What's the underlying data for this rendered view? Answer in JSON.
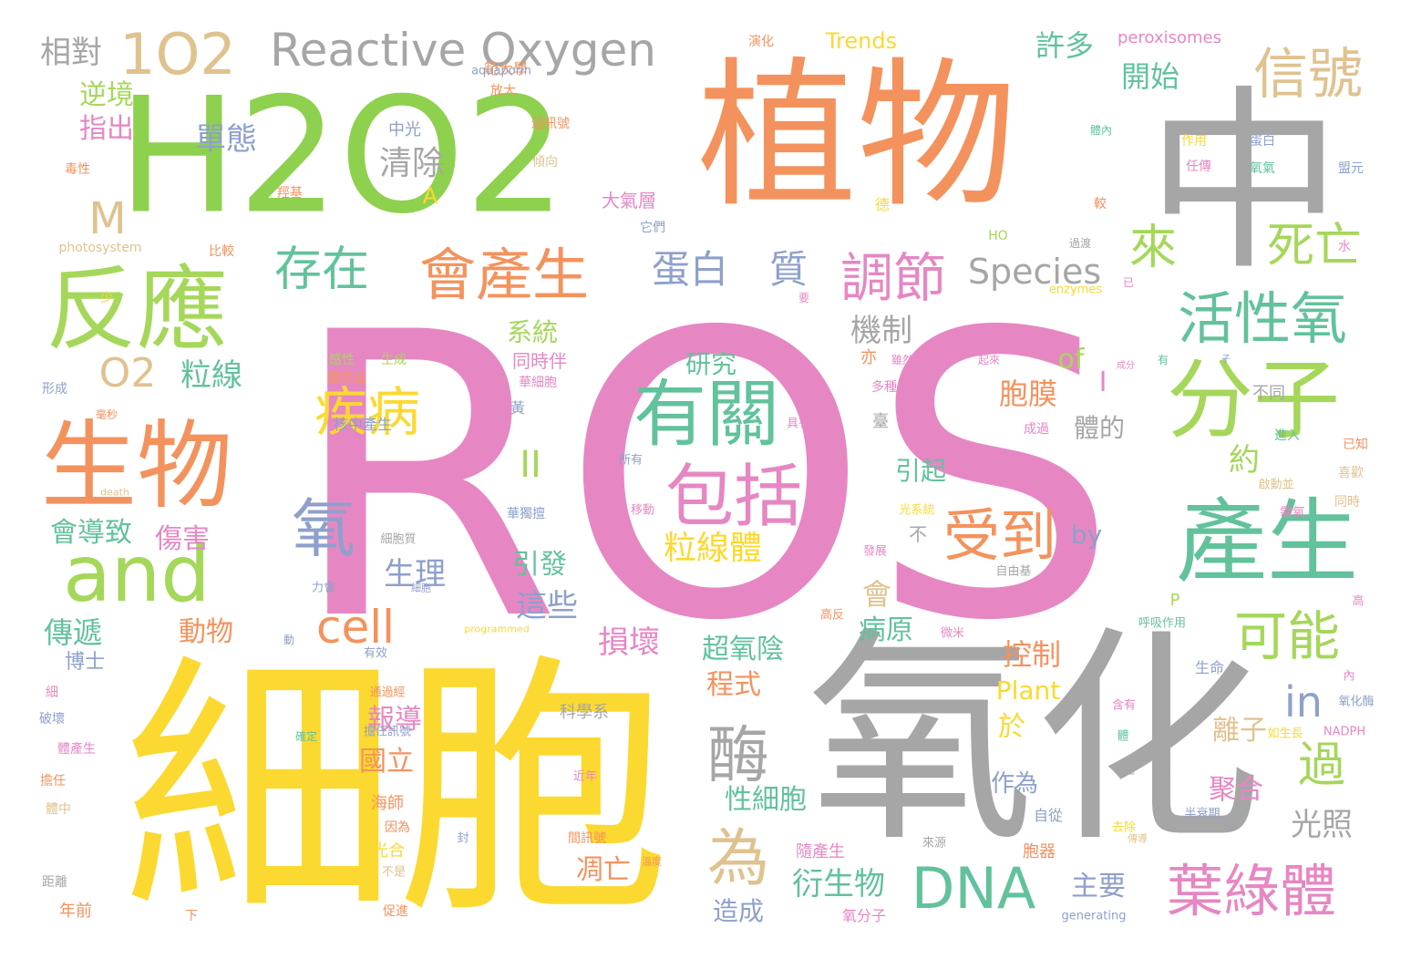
{
  "words": [
    {
      "text": "ROS",
      "color": "#e687c3"
    },
    {
      "text": "細胞",
      "color": "#fbd930"
    },
    {
      "text": "氧化",
      "color": "#a6a6a6"
    },
    {
      "text": "中",
      "color": "#a6a6a6"
    },
    {
      "text": "植物",
      "color": "#f4925d"
    },
    {
      "text": "H2O2",
      "color": "#8ed14e"
    },
    {
      "text": "生物",
      "color": "#f4925d"
    },
    {
      "text": "反應",
      "color": "#a5d75a"
    },
    {
      "text": "產生",
      "color": "#62c29b"
    },
    {
      "text": "分子",
      "color": "#a5d75a"
    },
    {
      "text": "有關",
      "color": "#62c29b"
    },
    {
      "text": "包括",
      "color": "#e687c3"
    },
    {
      "text": "and",
      "color": "#a5d75a"
    },
    {
      "text": "1O2",
      "color": "#e0c28f"
    },
    {
      "text": "Reactive Oxygen",
      "color": "#a6a6a6"
    },
    {
      "text": "信號",
      "color": "#e0c28f"
    },
    {
      "text": "活性氧",
      "color": "#62c29b"
    },
    {
      "text": "會產生",
      "color": "#f4925d"
    },
    {
      "text": "存在",
      "color": "#62c29b"
    },
    {
      "text": "調節",
      "color": "#e687c3"
    },
    {
      "text": "疾病",
      "color": "#fbd930"
    },
    {
      "text": "氧",
      "color": "#8ea0cb"
    },
    {
      "text": "受到",
      "color": "#f4925d"
    },
    {
      "text": "葉綠體",
      "color": "#e687c3"
    },
    {
      "text": "DNA",
      "color": "#62c29b"
    },
    {
      "text": "酶",
      "color": "#a6a6a6"
    },
    {
      "text": "為",
      "color": "#e0c28f"
    },
    {
      "text": "可能",
      "color": "#a5d75a"
    },
    {
      "text": "死亡",
      "color": "#a5d75a"
    },
    {
      "text": "來",
      "color": "#a5d75a"
    },
    {
      "text": "cell",
      "color": "#f4925d"
    },
    {
      "text": "蛋白",
      "color": "#8ea0cb"
    },
    {
      "text": "質",
      "color": "#8ea0cb"
    },
    {
      "text": "Species",
      "color": "#a6a6a6"
    },
    {
      "text": "過",
      "color": "#a5d75a"
    },
    {
      "text": "in",
      "color": "#8ea0cb"
    },
    {
      "text": "M",
      "color": "#e0c28f"
    },
    {
      "text": "O2",
      "color": "#e0c28f"
    },
    {
      "text": "相對",
      "color": "#a6a6a6"
    },
    {
      "text": "逆境",
      "color": "#a5d75a"
    },
    {
      "text": "指出",
      "color": "#e687c3"
    },
    {
      "text": "粒線",
      "color": "#62c29b"
    },
    {
      "text": "粒線體",
      "color": "#fbd930"
    },
    {
      "text": "單態",
      "color": "#8ea0cb"
    },
    {
      "text": "清除",
      "color": "#a6a6a6"
    },
    {
      "text": "許多",
      "color": "#62c29b"
    },
    {
      "text": "開始",
      "color": "#62c29b"
    },
    {
      "text": "機制",
      "color": "#a6a6a6"
    },
    {
      "text": "系統",
      "color": "#a5d75a"
    },
    {
      "text": "研究",
      "color": "#62c29b"
    },
    {
      "text": "胞膜",
      "color": "#f4925d"
    },
    {
      "text": "體的",
      "color": "#a6a6a6"
    },
    {
      "text": "約",
      "color": "#a5d75a"
    },
    {
      "text": "of",
      "color": "#a5d75a"
    },
    {
      "text": "I",
      "color": "#e687c3"
    },
    {
      "text": "II",
      "color": "#a5d75a"
    },
    {
      "text": "引起",
      "color": "#62c29b"
    },
    {
      "text": "by",
      "color": "#8ea0cb"
    },
    {
      "text": "會導致",
      "color": "#62c29b"
    },
    {
      "text": "傷害",
      "color": "#e687c3"
    },
    {
      "text": "生理",
      "color": "#8ea0cb"
    },
    {
      "text": "引發",
      "color": "#62c29b"
    },
    {
      "text": "這些",
      "color": "#8ea0cb"
    },
    {
      "text": "會",
      "color": "#e0c28f"
    },
    {
      "text": "傳遞",
      "color": "#62c29b"
    },
    {
      "text": "動物",
      "color": "#f4925d"
    },
    {
      "text": "損壞",
      "color": "#e687c3"
    },
    {
      "text": "超氧陰",
      "color": "#62c29b"
    },
    {
      "text": "控制",
      "color": "#f4925d"
    },
    {
      "text": "博士",
      "color": "#8ea0cb"
    },
    {
      "text": "程式",
      "color": "#f4925d"
    },
    {
      "text": "病原",
      "color": "#62c29b"
    },
    {
      "text": "Plant",
      "color": "#fbd930"
    },
    {
      "text": "報導",
      "color": "#e687c3"
    },
    {
      "text": "於",
      "color": "#fbd930"
    },
    {
      "text": "離子",
      "color": "#e0c28f"
    },
    {
      "text": "作為",
      "color": "#8ea0cb"
    },
    {
      "text": "聚合",
      "color": "#e687c3"
    },
    {
      "text": "性細胞",
      "color": "#62c29b"
    },
    {
      "text": "光照",
      "color": "#a6a6a6"
    },
    {
      "text": "國立",
      "color": "#f4925d"
    },
    {
      "text": "凋亡",
      "color": "#f4925d"
    },
    {
      "text": "衍生物",
      "color": "#62c29b"
    },
    {
      "text": "主要",
      "color": "#8ea0cb"
    },
    {
      "text": "造成",
      "color": "#8ea0cb"
    },
    {
      "text": "Trends",
      "color": "#fbd930"
    },
    {
      "text": "peroxisomes",
      "color": "#e687c3"
    },
    {
      "text": "範大學",
      "color": "#f4925d"
    },
    {
      "text": "演化",
      "color": "#f4925d"
    },
    {
      "text": "aquaporin",
      "color": "#8ea0cb"
    },
    {
      "text": "放大",
      "color": "#f4925d"
    },
    {
      "text": "中光",
      "color": "#8ea0cb"
    },
    {
      "text": "遞訊號",
      "color": "#f4925d"
    },
    {
      "text": "傾向",
      "color": "#e0c28f"
    },
    {
      "text": "毒性",
      "color": "#f4925d"
    },
    {
      "text": "羥基",
      "color": "#f4925d"
    },
    {
      "text": "A",
      "color": "#fbd930"
    },
    {
      "text": "大氣層",
      "color": "#e687c3"
    },
    {
      "text": "它們",
      "color": "#8ea0cb"
    },
    {
      "text": "photosystem",
      "color": "#e0c28f"
    },
    {
      "text": "比較",
      "color": "#f4925d"
    },
    {
      "text": "體內",
      "color": "#62c29b"
    },
    {
      "text": "作用",
      "color": "#fbd930"
    },
    {
      "text": "蛋白",
      "color": "#8ea0cb"
    },
    {
      "text": "任傳",
      "color": "#e687c3"
    },
    {
      "text": "氧氣",
      "color": "#62c29b"
    },
    {
      "text": "盟元",
      "color": "#8ea0cb"
    },
    {
      "text": "德",
      "color": "#fbd930"
    },
    {
      "text": "較",
      "color": "#f4925d"
    },
    {
      "text": "HO",
      "color": "#a5d75a"
    },
    {
      "text": "過渡",
      "color": "#a6a6a6"
    },
    {
      "text": "enzymes",
      "color": "#fbd930"
    },
    {
      "text": "水",
      "color": "#e687c3"
    },
    {
      "text": "已",
      "color": "#e687c3"
    },
    {
      "text": "少",
      "color": "#fbd930"
    },
    {
      "text": "要",
      "color": "#e687c3"
    },
    {
      "text": "同時伴",
      "color": "#e687c3"
    },
    {
      "text": "華細胞",
      "color": "#e687c3"
    },
    {
      "text": "黃",
      "color": "#8ea0cb"
    },
    {
      "text": "感性",
      "color": "#a5d75a"
    },
    {
      "text": "生成",
      "color": "#a5d75a"
    },
    {
      "text": "亦",
      "color": "#f4925d"
    },
    {
      "text": "雖然",
      "color": "#e687c3"
    },
    {
      "text": "起來",
      "color": "#e687c3"
    },
    {
      "text": "有",
      "color": "#62c29b"
    },
    {
      "text": "成分",
      "color": "#e687c3"
    },
    {
      "text": "子",
      "color": "#8ea0cb"
    },
    {
      "text": "形成",
      "color": "#8ea0cb"
    },
    {
      "text": "體和過",
      "color": "#f4925d"
    },
    {
      "text": "多種",
      "color": "#e687c3"
    },
    {
      "text": "不同",
      "color": "#a6a6a6"
    },
    {
      "text": "臺",
      "color": "#a6a6a6"
    },
    {
      "text": "成過",
      "color": "#e687c3"
    },
    {
      "text": "進入",
      "color": "#62c29b"
    },
    {
      "text": "核中產生",
      "color": "#8ea0cb"
    },
    {
      "text": "毫秒",
      "color": "#f4925d"
    },
    {
      "text": "具有",
      "color": "#e687c3"
    },
    {
      "text": "所有",
      "color": "#8ea0cb"
    },
    {
      "text": "已知",
      "color": "#f4925d"
    },
    {
      "text": "喜歡",
      "color": "#e0c28f"
    },
    {
      "text": "death",
      "color": "#e0c28f"
    },
    {
      "text": "移動",
      "color": "#e687c3"
    },
    {
      "text": "華獨擅",
      "color": "#8ea0cb"
    },
    {
      "text": "光系統",
      "color": "#fbd930"
    },
    {
      "text": "啟動並",
      "color": "#e0c28f"
    },
    {
      "text": "需氧",
      "color": "#e687c3"
    },
    {
      "text": "同時",
      "color": "#e0c28f"
    },
    {
      "text": "細胞質",
      "color": "#a6a6a6"
    },
    {
      "text": "不",
      "color": "#a6a6a6"
    },
    {
      "text": "發展",
      "color": "#e687c3"
    },
    {
      "text": "力會",
      "color": "#8ea0cb"
    },
    {
      "text": "細胞",
      "color": "#8ea0cb"
    },
    {
      "text": "自由基",
      "color": "#a6a6a6"
    },
    {
      "text": "P",
      "color": "#a5d75a"
    },
    {
      "text": "高",
      "color": "#e687c3"
    },
    {
      "text": "高反",
      "color": "#f4925d"
    },
    {
      "text": "呼吸作用",
      "color": "#62c29b"
    },
    {
      "text": "微米",
      "color": "#e687c3"
    },
    {
      "text": "動",
      "color": "#8ea0cb"
    },
    {
      "text": "有效",
      "color": "#8ea0cb"
    },
    {
      "text": "programmed",
      "color": "#fbd930"
    },
    {
      "text": "生命",
      "color": "#8ea0cb"
    },
    {
      "text": "細",
      "color": "#e687c3"
    },
    {
      "text": "通過經",
      "color": "#f4925d"
    },
    {
      "text": "氧化酶",
      "color": "#8ea0cb"
    },
    {
      "text": "內",
      "color": "#e687c3"
    },
    {
      "text": "破壞",
      "color": "#8ea0cb"
    },
    {
      "text": "科學系",
      "color": "#a6a6a6"
    },
    {
      "text": "如生長",
      "color": "#fbd930"
    },
    {
      "text": "含有",
      "color": "#e687c3"
    },
    {
      "text": "NADPH",
      "color": "#e687c3"
    },
    {
      "text": "體產生",
      "color": "#e687c3"
    },
    {
      "text": "確定",
      "color": "#62c29b"
    },
    {
      "text": "擔任訊號",
      "color": "#8ea0cb"
    },
    {
      "text": "體",
      "color": "#62c29b"
    },
    {
      "text": "一起",
      "color": "#a6a6a6"
    },
    {
      "text": "擔任",
      "color": "#f4925d"
    },
    {
      "text": "近年",
      "color": "#e687c3"
    },
    {
      "text": "體中",
      "color": "#e0c28f"
    },
    {
      "text": "海師",
      "color": "#f4925d"
    },
    {
      "text": "因為",
      "color": "#f4925d"
    },
    {
      "text": "封",
      "color": "#8ea0cb"
    },
    {
      "text": "光合",
      "color": "#fbd930"
    },
    {
      "text": "間訊號",
      "color": "#f4925d"
    },
    {
      "text": "隨產生",
      "color": "#e687c3"
    },
    {
      "text": "自從",
      "color": "#8ea0cb"
    },
    {
      "text": "去除",
      "color": "#fbd930"
    },
    {
      "text": "半衰期",
      "color": "#8ea0cb"
    },
    {
      "text": "來源",
      "color": "#a6a6a6"
    },
    {
      "text": "胞器",
      "color": "#f4925d"
    },
    {
      "text": "距離",
      "color": "#a6a6a6"
    },
    {
      "text": "不是",
      "color": "#e0c28f"
    },
    {
      "text": "溫度",
      "color": "#f4925d"
    },
    {
      "text": "年前",
      "color": "#f4925d"
    },
    {
      "text": "下",
      "color": "#f4925d"
    },
    {
      "text": "促進",
      "color": "#f4925d"
    },
    {
      "text": "氧分子",
      "color": "#e687c3"
    },
    {
      "text": "generating",
      "color": "#8ea0cb"
    },
    {
      "text": "傳導",
      "color": "#e0c28f"
    }
  ]
}
